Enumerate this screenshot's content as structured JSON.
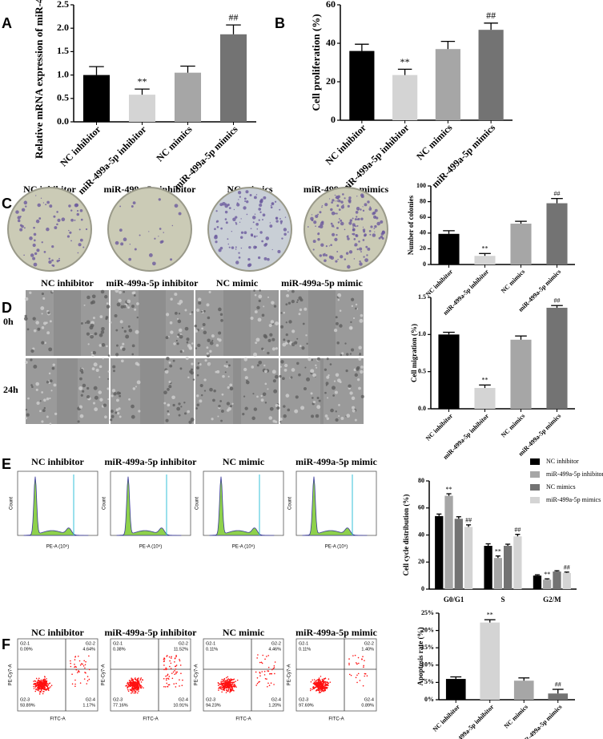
{
  "panels": {
    "labels": [
      "A",
      "B",
      "C",
      "D",
      "E",
      "F"
    ]
  },
  "colony_images": {
    "labels": [
      "NC inhibitor",
      "miR-499a-5p inhibitor",
      "NC mimics",
      "miR-499a-5p mimics"
    ]
  },
  "wound_images": {
    "labels": [
      "NC inhibitor",
      "miR-499a-5p inhibitor",
      "NC mimic",
      "miR-499a-5p mimic"
    ],
    "rows": [
      "0h",
      "24h"
    ]
  },
  "cell_cycle_plots": {
    "titles": [
      "NC inhibitor",
      "miR-499a-5p inhibitor",
      "NC mimic",
      "miR-499a-5p mimic"
    ],
    "x_label": "PE-A (10⁵)",
    "y_label": "Count"
  },
  "apoptosis_plots": {
    "titles": [
      "NC inhibitor",
      "miR-499a-5p inhibitor",
      "NC mimic",
      "miR-499a-5p mimic"
    ],
    "x_label": "FITC-A",
    "y_label": "PE-Cy7-A",
    "quadrant_names": [
      "G2-1",
      "G2-2",
      "G2-3",
      "G2-4"
    ],
    "quadrants": [
      [
        "0.09%",
        "4.64%",
        "93.89%",
        "1.17%"
      ],
      [
        "0.38%",
        "11.52%",
        "77.16%",
        "10.91%"
      ],
      [
        "0.11%",
        "4.46%",
        "94.23%",
        "1.20%"
      ],
      [
        "0.11%",
        "1.40%",
        "97.69%",
        "0.89%"
      ]
    ]
  },
  "chart_data": [
    {
      "type": "bar",
      "y_label": "Relative mRNA expression of miR-499a-5p",
      "categories": [
        "NC inhibitor",
        "miR-499a-5p inhibitor",
        "NC mimics",
        "miR-499a-5p mimics"
      ],
      "values": [
        1.0,
        0.58,
        1.05,
        1.87
      ],
      "errors": [
        0.18,
        0.12,
        0.14,
        0.2
      ],
      "annotations": [
        null,
        "**",
        null,
        "##"
      ],
      "colors": [
        "#000000",
        "#d4d4d4",
        "#a6a6a6",
        "#737373"
      ],
      "ylim": [
        0,
        2.5
      ],
      "yticks": [
        {
          "value": 0,
          "label": "0.0"
        },
        0.5,
        {
          "value": 1,
          "label": "1.0"
        },
        1.5,
        {
          "value": 2,
          "label": "2.0"
        },
        2.5
      ]
    },
    {
      "type": "bar",
      "y_label": "Cell proliferation (%)",
      "categories": [
        "NC inhibitor",
        "miR-499a-5p inhibitor",
        "NC mimics",
        "miR-499a-5p mimics"
      ],
      "values": [
        36,
        23.5,
        37,
        47
      ],
      "errors": [
        3.5,
        3,
        4,
        3.5
      ],
      "annotations": [
        null,
        "**",
        null,
        "##"
      ],
      "colors": [
        "#000000",
        "#d4d4d4",
        "#a6a6a6",
        "#737373"
      ],
      "ylim": [
        0,
        60
      ],
      "yticks": [
        0,
        20,
        40,
        60
      ]
    },
    {
      "type": "bar",
      "y_label": "Number of colonies",
      "categories": [
        "NC inhibitor",
        "miR-499a-5p inhibitor",
        "NC mimics",
        "miR-499a-5p mimics"
      ],
      "values": [
        39,
        11,
        52,
        78
      ],
      "errors": [
        4,
        3,
        3,
        6
      ],
      "annotations": [
        null,
        "**",
        null,
        "##"
      ],
      "colors": [
        "#000000",
        "#d4d4d4",
        "#a6a6a6",
        "#737373"
      ],
      "ylim": [
        0,
        100
      ],
      "yticks": [
        0,
        20,
        40,
        60,
        80,
        100
      ]
    },
    {
      "type": "bar",
      "y_label": "Cell migration (%)",
      "categories": [
        "NC inhibitor",
        "miR-499a-5p inhibitor",
        "NC mimics",
        "miR-499a-5p mimics"
      ],
      "values": [
        1.0,
        0.28,
        0.93,
        1.36
      ],
      "errors": [
        0.03,
        0.04,
        0.05,
        0.03
      ],
      "annotations": [
        null,
        "**",
        null,
        "##"
      ],
      "colors": [
        "#000000",
        "#d4d4d4",
        "#a6a6a6",
        "#737373"
      ],
      "ylim": [
        0,
        1.5
      ],
      "yticks": [
        {
          "value": 0,
          "label": "0.0"
        },
        0.5,
        {
          "value": 1,
          "label": "1.0"
        },
        1.5
      ]
    },
    {
      "type": "grouped_bar",
      "y_label": "Cell cycle distribution (%)",
      "categories": [
        "G0/G1",
        "S",
        "G2/M"
      ],
      "series": [
        {
          "name": "NC inhibitor",
          "color": "#000000",
          "values": [
            54,
            32,
            10
          ],
          "errors": [
            1.5,
            1.5,
            0.6
          ],
          "annotations": [
            null,
            null,
            null
          ]
        },
        {
          "name": "miR-499a-5p inhibitor",
          "color": "#a6a6a6",
          "values": [
            69,
            23,
            7
          ],
          "errors": [
            1.5,
            1.5,
            0.6
          ],
          "annotations": [
            "**",
            "**",
            "**"
          ]
        },
        {
          "name": "NC mimics",
          "color": "#737373",
          "values": [
            52,
            32,
            13
          ],
          "errors": [
            1.5,
            1.2,
            0.6
          ],
          "annotations": [
            null,
            null,
            null
          ]
        },
        {
          "name": "miR-499a-5p mimics",
          "color": "#d4d4d4",
          "values": [
            46,
            39,
            12
          ],
          "errors": [
            1.5,
            1.5,
            0.6
          ],
          "annotations": [
            "##",
            "##",
            "##"
          ]
        }
      ],
      "legend": "right",
      "ylim": [
        0,
        80
      ],
      "yticks": [
        0,
        20,
        40,
        60,
        80
      ]
    },
    {
      "type": "bar",
      "y_label": "Apoptosis rate (%)",
      "categories": [
        "NC inhibitor",
        "miR-499a-5p inhibitor",
        "NC mimics",
        "miR-499a-5p mimics"
      ],
      "values": [
        6,
        22.3,
        5.5,
        1.8
      ],
      "errors": [
        0.6,
        0.8,
        0.8,
        1.2
      ],
      "annotations": [
        null,
        "**",
        null,
        "##"
      ],
      "colors": [
        "#000000",
        "#d4d4d4",
        "#a6a6a6",
        "#737373"
      ],
      "ylim": [
        0,
        25
      ],
      "yticks": [
        {
          "value": 0,
          "label": "0%"
        },
        {
          "value": 5,
          "label": "5%"
        },
        {
          "value": 10,
          "label": "10%"
        },
        {
          "value": 15,
          "label": "15%"
        },
        {
          "value": 20,
          "label": "20%"
        },
        {
          "value": 25,
          "label": "25%"
        }
      ]
    }
  ]
}
